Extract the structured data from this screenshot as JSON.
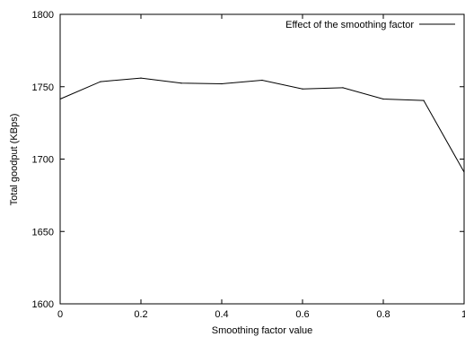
{
  "chart_data": {
    "type": "line",
    "title": "",
    "xlabel": "Smoothing factor value",
    "ylabel": "Total goodput (KBps)",
    "xlim": [
      0,
      1
    ],
    "ylim": [
      1600,
      1800
    ],
    "xticks": [
      0,
      0.2,
      0.4,
      0.6,
      0.8,
      1
    ],
    "xtick_labels": [
      "0",
      "0.2",
      "0.4",
      "0.6",
      "0.8",
      "1"
    ],
    "yticks": [
      1600,
      1650,
      1700,
      1750,
      1800
    ],
    "ytick_labels": [
      "1600",
      "1650",
      "1700",
      "1750",
      "1800"
    ],
    "grid": false,
    "legend_position": "top-right",
    "series": [
      {
        "name": "Effect of the smoothing factor",
        "color": "#000000",
        "x": [
          0,
          0.1,
          0.2,
          0.3,
          0.4,
          0.5,
          0.6,
          0.7,
          0.8,
          0.9,
          1.0
        ],
        "y": [
          1741.5,
          1753.5,
          1756,
          1752.5,
          1752,
          1754.5,
          1748.5,
          1749.3,
          1741.5,
          1740.5,
          1691
        ]
      }
    ]
  }
}
